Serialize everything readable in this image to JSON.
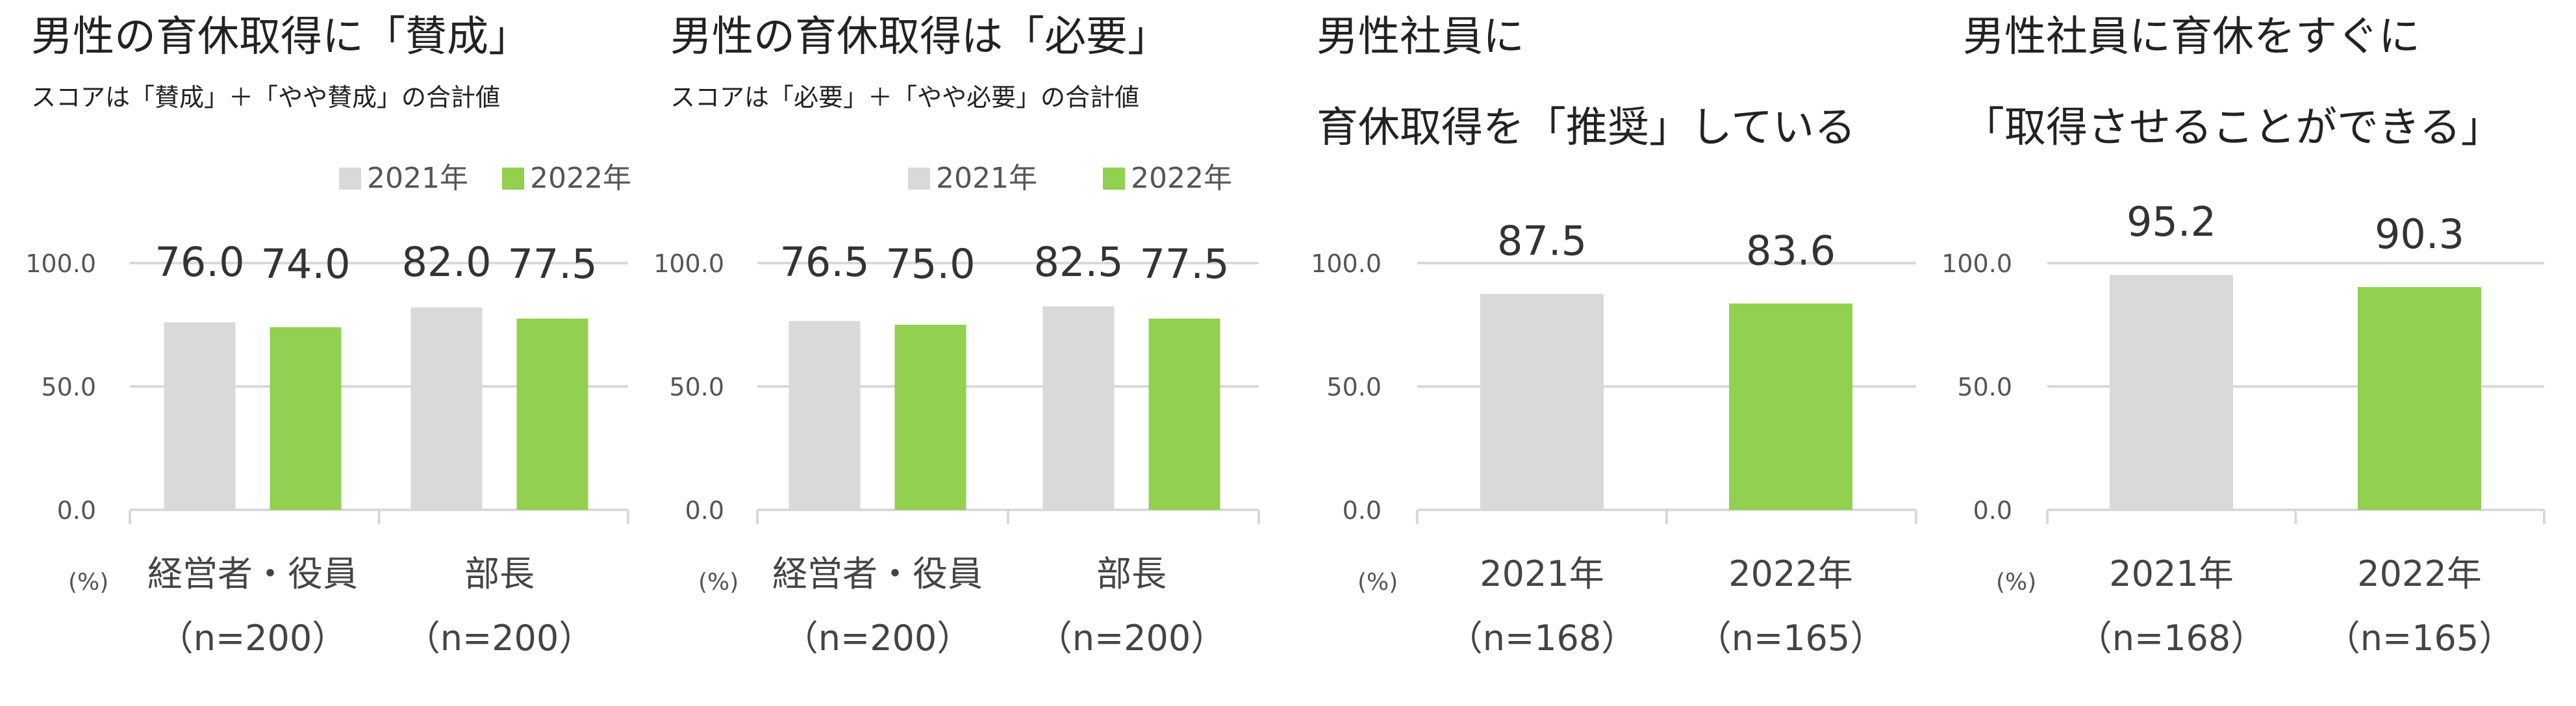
{
  "colors": {
    "series_2021": "#d9d9d9",
    "series_2022": "#92d050",
    "grid": "#d9d9d9"
  },
  "unit_label": "(%)",
  "chart_data": [
    {
      "type": "bar",
      "title": "男性の育休取得に「賛成」",
      "title_lines": [
        "男性の育休取得に「賛成」"
      ],
      "subtitle": "スコアは「賛成」＋「やや賛成」の合計値",
      "legend": [
        "2021年",
        "2022年"
      ],
      "categories": [
        "経営者・役員",
        "部長"
      ],
      "category_n": [
        "（n=200）",
        "（n=200）"
      ],
      "series": [
        {
          "name": "2021年",
          "values": [
            76.0,
            82.0
          ]
        },
        {
          "name": "2022年",
          "values": [
            74.0,
            77.5
          ]
        }
      ],
      "value_labels": [
        [
          "76.0",
          "82.0"
        ],
        [
          "74.0",
          "77.5"
        ]
      ],
      "yticks": [
        "0.0",
        "50.0",
        "100.0"
      ],
      "ylim": [
        0,
        100
      ],
      "ylabel": "(%)",
      "grid": true
    },
    {
      "type": "bar",
      "title": "男性の育休取得は「必要」",
      "title_lines": [
        "男性の育休取得は「必要」"
      ],
      "subtitle": "スコアは「必要」＋「やや必要」の合計値",
      "legend": [
        "2021年",
        "2022年"
      ],
      "categories": [
        "経営者・役員",
        "部長"
      ],
      "category_n": [
        "（n=200）",
        "（n=200）"
      ],
      "series": [
        {
          "name": "2021年",
          "values": [
            76.5,
            82.5
          ]
        },
        {
          "name": "2022年",
          "values": [
            75.0,
            77.5
          ]
        }
      ],
      "value_labels": [
        [
          "76.5",
          "82.5"
        ],
        [
          "75.0",
          "77.5"
        ]
      ],
      "yticks": [
        "0.0",
        "50.0",
        "100.0"
      ],
      "ylim": [
        0,
        100
      ],
      "ylabel": "(%)",
      "grid": true
    },
    {
      "type": "bar",
      "title": "男性社員に育休取得を「推奨」している",
      "title_lines": [
        "男性社員に",
        "育休取得を「推奨」している"
      ],
      "subtitle": "",
      "legend": [],
      "categories": [
        "2021年",
        "2022年"
      ],
      "category_n": [
        "（n=168）",
        "（n=165）"
      ],
      "series": [
        {
          "name": "",
          "values": [
            87.5,
            83.6
          ]
        }
      ],
      "value_labels": [
        [
          "87.5",
          "83.6"
        ]
      ],
      "yticks": [
        "0.0",
        "50.0",
        "100.0"
      ],
      "ylim": [
        0,
        100
      ],
      "ylabel": "(%)",
      "grid": true
    },
    {
      "type": "bar",
      "title": "男性社員に育休をすぐに「取得させることができる」",
      "title_lines": [
        "男性社員に育休をすぐに",
        "「取得させることができる」"
      ],
      "subtitle": "",
      "legend": [],
      "categories": [
        "2021年",
        "2022年"
      ],
      "category_n": [
        "（n=168）",
        "（n=165）"
      ],
      "series": [
        {
          "name": "",
          "values": [
            95.2,
            90.3
          ]
        }
      ],
      "value_labels": [
        [
          "95.2",
          "90.3"
        ]
      ],
      "yticks": [
        "0.0",
        "50.0",
        "100.0"
      ],
      "ylim": [
        0,
        100
      ],
      "ylabel": "(%)",
      "grid": true
    }
  ]
}
